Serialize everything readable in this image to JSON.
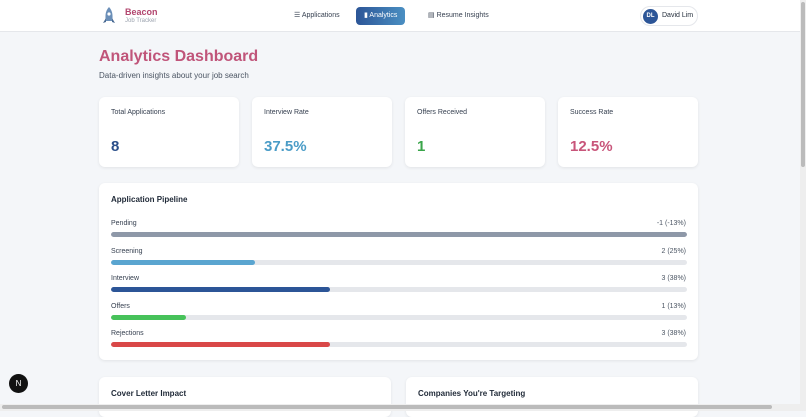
{
  "header": {
    "brand": "Beacon",
    "tagline": "Job Tracker",
    "nav": [
      "Applications",
      "Analytics",
      "Resume Insights"
    ],
    "user": {
      "initials": "DL",
      "name": "David Lim"
    }
  },
  "page": {
    "title": "Analytics Dashboard",
    "subtitle": "Data-driven insights about your job search"
  },
  "stats": [
    {
      "label": "Total Applications",
      "value": "8",
      "color": "#2b4f8a"
    },
    {
      "label": "Interview Rate",
      "value": "37.5%",
      "color": "#4a9cc7"
    },
    {
      "label": "Offers Received",
      "value": "1",
      "color": "#3aa54a"
    },
    {
      "label": "Success Rate",
      "value": "12.5%",
      "color": "#c8557a"
    }
  ],
  "pipeline": {
    "title": "Application Pipeline",
    "rows": [
      {
        "label": "Pending",
        "count": "-1 (-13%)",
        "fill": 100,
        "color": "#8e98a8"
      },
      {
        "label": "Screening",
        "count": "2 (25%)",
        "fill": 25,
        "color": "#5aa5d0"
      },
      {
        "label": "Interview",
        "count": "3 (38%)",
        "fill": 38,
        "color": "#2c5597"
      },
      {
        "label": "Offers",
        "count": "1 (13%)",
        "fill": 13,
        "color": "#47c25a"
      },
      {
        "label": "Rejections",
        "count": "3 (38%)",
        "fill": 38,
        "color": "#d94848"
      }
    ]
  },
  "sections": [
    "Cover Letter Impact",
    "Companies You're Targeting"
  ],
  "dev_badge": "N"
}
